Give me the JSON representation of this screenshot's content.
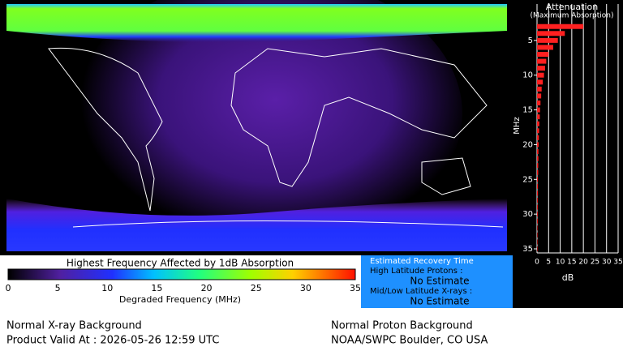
{
  "colorbar": {
    "title": "Highest Frequency Affected by 1dB Absorption",
    "label": "Degraded Frequency (MHz)",
    "lim": [
      0,
      35
    ],
    "ticks": [
      0,
      5,
      10,
      15,
      20,
      25,
      30,
      35
    ]
  },
  "chart_data": {
    "type": "hbar",
    "title": "Attenuation",
    "subtitle": "(Maximum Absorption)",
    "xlabel": "dB",
    "ylabel": "MHz",
    "y": [
      3,
      4,
      5,
      6,
      7,
      8,
      9,
      10,
      11,
      12,
      13,
      14,
      15,
      16,
      17,
      18,
      19,
      20,
      21,
      22,
      23,
      24,
      25,
      26,
      27,
      28,
      29,
      30,
      31,
      32,
      33,
      34,
      35
    ],
    "values": [
      20,
      12,
      9,
      7,
      5,
      4,
      3.5,
      3,
      2.5,
      2,
      1.8,
      1.5,
      1.3,
      1.2,
      1,
      0.9,
      0.8,
      0.7,
      0.6,
      0.6,
      0.5,
      0.5,
      0.4,
      0.4,
      0.4,
      0.3,
      0.3,
      0.3,
      0.3,
      0.2,
      0.2,
      0.2,
      0.2
    ],
    "color": "#ff2020",
    "xlim": [
      0,
      35
    ],
    "xticks": [
      0,
      5,
      10,
      15,
      20,
      25,
      30,
      35
    ],
    "ylim": [
      0,
      35
    ],
    "yticks": [
      5,
      10,
      15,
      20,
      25,
      30,
      35
    ],
    "grid": true
  },
  "recovery": {
    "title": "Estimated Recovery Time",
    "high_label": "High Latitude Protons :",
    "high_value": "No Estimate",
    "low_label": "Mid/Low Latitude X-rays :",
    "low_value": "No Estimate"
  },
  "footer": {
    "xray": "Normal X-ray Background",
    "valid": "Product Valid At : 2026-05-26 12:59 UTC",
    "proton": "Normal Proton Background",
    "source": "NOAA/SWPC Boulder, CO USA"
  }
}
